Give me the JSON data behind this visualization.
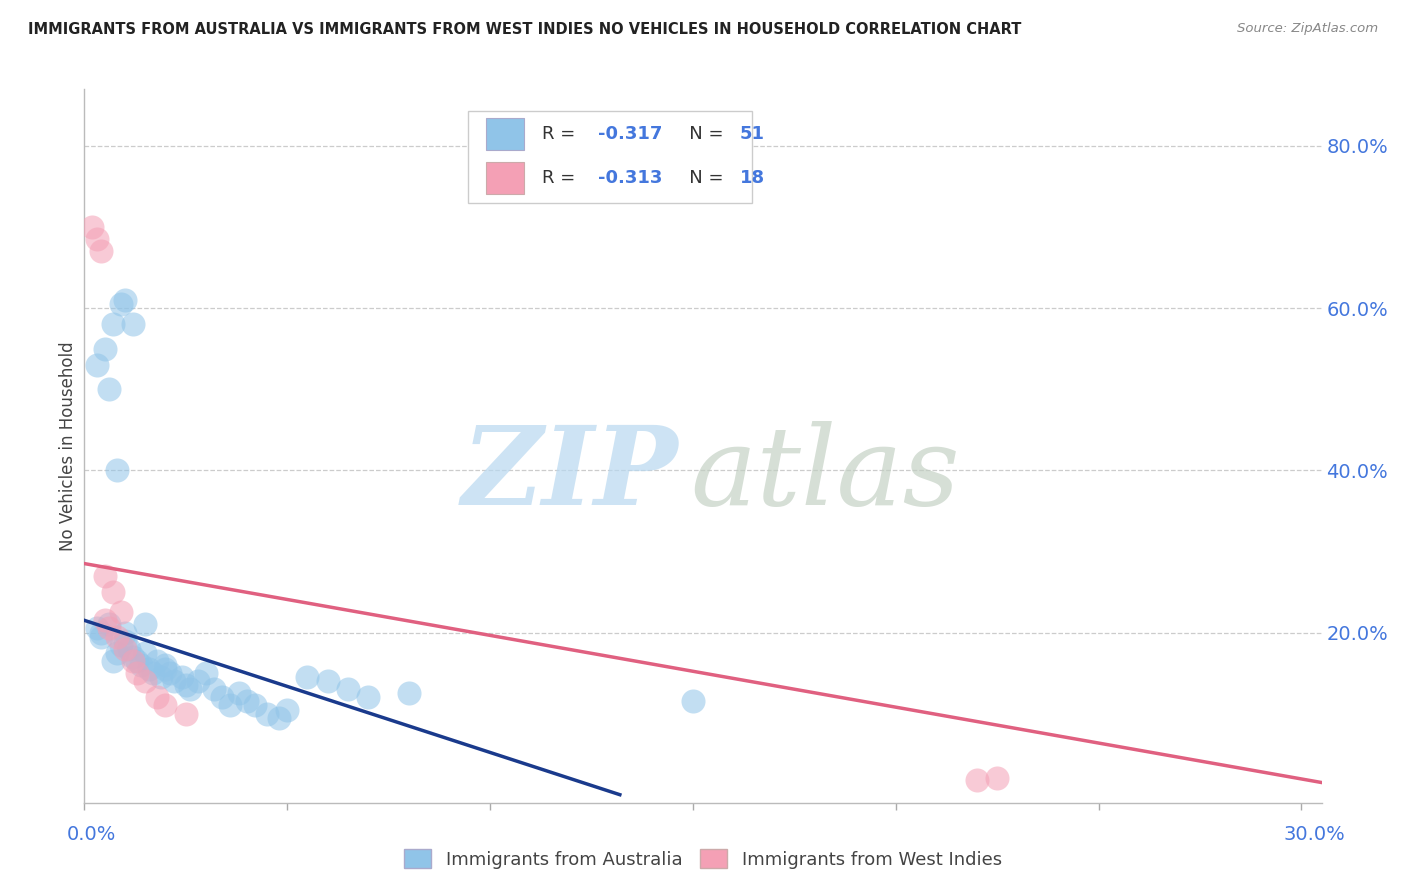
{
  "title": "IMMIGRANTS FROM AUSTRALIA VS IMMIGRANTS FROM WEST INDIES NO VEHICLES IN HOUSEHOLD CORRELATION CHART",
  "source": "Source: ZipAtlas.com",
  "ylabel": "No Vehicles in Household",
  "yticks": [
    0.0,
    0.2,
    0.4,
    0.6,
    0.8
  ],
  "ytick_labels": [
    "",
    "20.0%",
    "40.0%",
    "60.0%",
    "80.0%"
  ],
  "xticks": [
    0.0,
    0.05,
    0.1,
    0.15,
    0.2,
    0.25,
    0.3
  ],
  "xlim": [
    0.0,
    0.305
  ],
  "ylim": [
    -0.01,
    0.87
  ],
  "color_australia": "#90C4E8",
  "color_westindies": "#F4A0B5",
  "color_australia_line": "#1A3A8C",
  "color_westindies_line": "#E06080",
  "background_color": "#FFFFFF",
  "grid_color": "#CCCCCC",
  "australia_x": [
    0.003,
    0.004,
    0.004,
    0.006,
    0.007,
    0.008,
    0.009,
    0.01,
    0.01,
    0.011,
    0.012,
    0.013,
    0.014,
    0.015,
    0.016,
    0.017,
    0.018,
    0.019,
    0.02,
    0.021,
    0.022,
    0.024,
    0.025,
    0.026,
    0.028,
    0.03,
    0.032,
    0.034,
    0.036,
    0.038,
    0.04,
    0.042,
    0.045,
    0.048,
    0.05,
    0.055,
    0.06,
    0.065,
    0.07,
    0.08,
    0.003,
    0.005,
    0.006,
    0.007,
    0.008,
    0.009,
    0.01,
    0.012,
    0.015,
    0.02,
    0.15
  ],
  "australia_y": [
    0.205,
    0.2,
    0.195,
    0.21,
    0.165,
    0.175,
    0.185,
    0.2,
    0.19,
    0.18,
    0.17,
    0.165,
    0.16,
    0.175,
    0.155,
    0.15,
    0.165,
    0.145,
    0.16,
    0.15,
    0.14,
    0.145,
    0.135,
    0.13,
    0.14,
    0.15,
    0.13,
    0.12,
    0.11,
    0.125,
    0.115,
    0.11,
    0.1,
    0.095,
    0.105,
    0.145,
    0.14,
    0.13,
    0.12,
    0.125,
    0.53,
    0.55,
    0.5,
    0.58,
    0.4,
    0.605,
    0.61,
    0.58,
    0.21,
    0.155,
    0.115
  ],
  "westindies_x": [
    0.002,
    0.003,
    0.004,
    0.005,
    0.006,
    0.007,
    0.008,
    0.009,
    0.01,
    0.012,
    0.013,
    0.015,
    0.018,
    0.02,
    0.025,
    0.22,
    0.225,
    0.005
  ],
  "westindies_y": [
    0.7,
    0.685,
    0.67,
    0.215,
    0.205,
    0.25,
    0.195,
    0.225,
    0.18,
    0.165,
    0.15,
    0.14,
    0.12,
    0.11,
    0.1,
    0.018,
    0.02,
    0.27
  ],
  "aus_line_x": [
    0.0,
    0.132
  ],
  "aus_line_y": [
    0.215,
    0.0
  ],
  "wi_line_x": [
    0.0,
    0.305
  ],
  "wi_line_y": [
    0.285,
    0.015
  ]
}
